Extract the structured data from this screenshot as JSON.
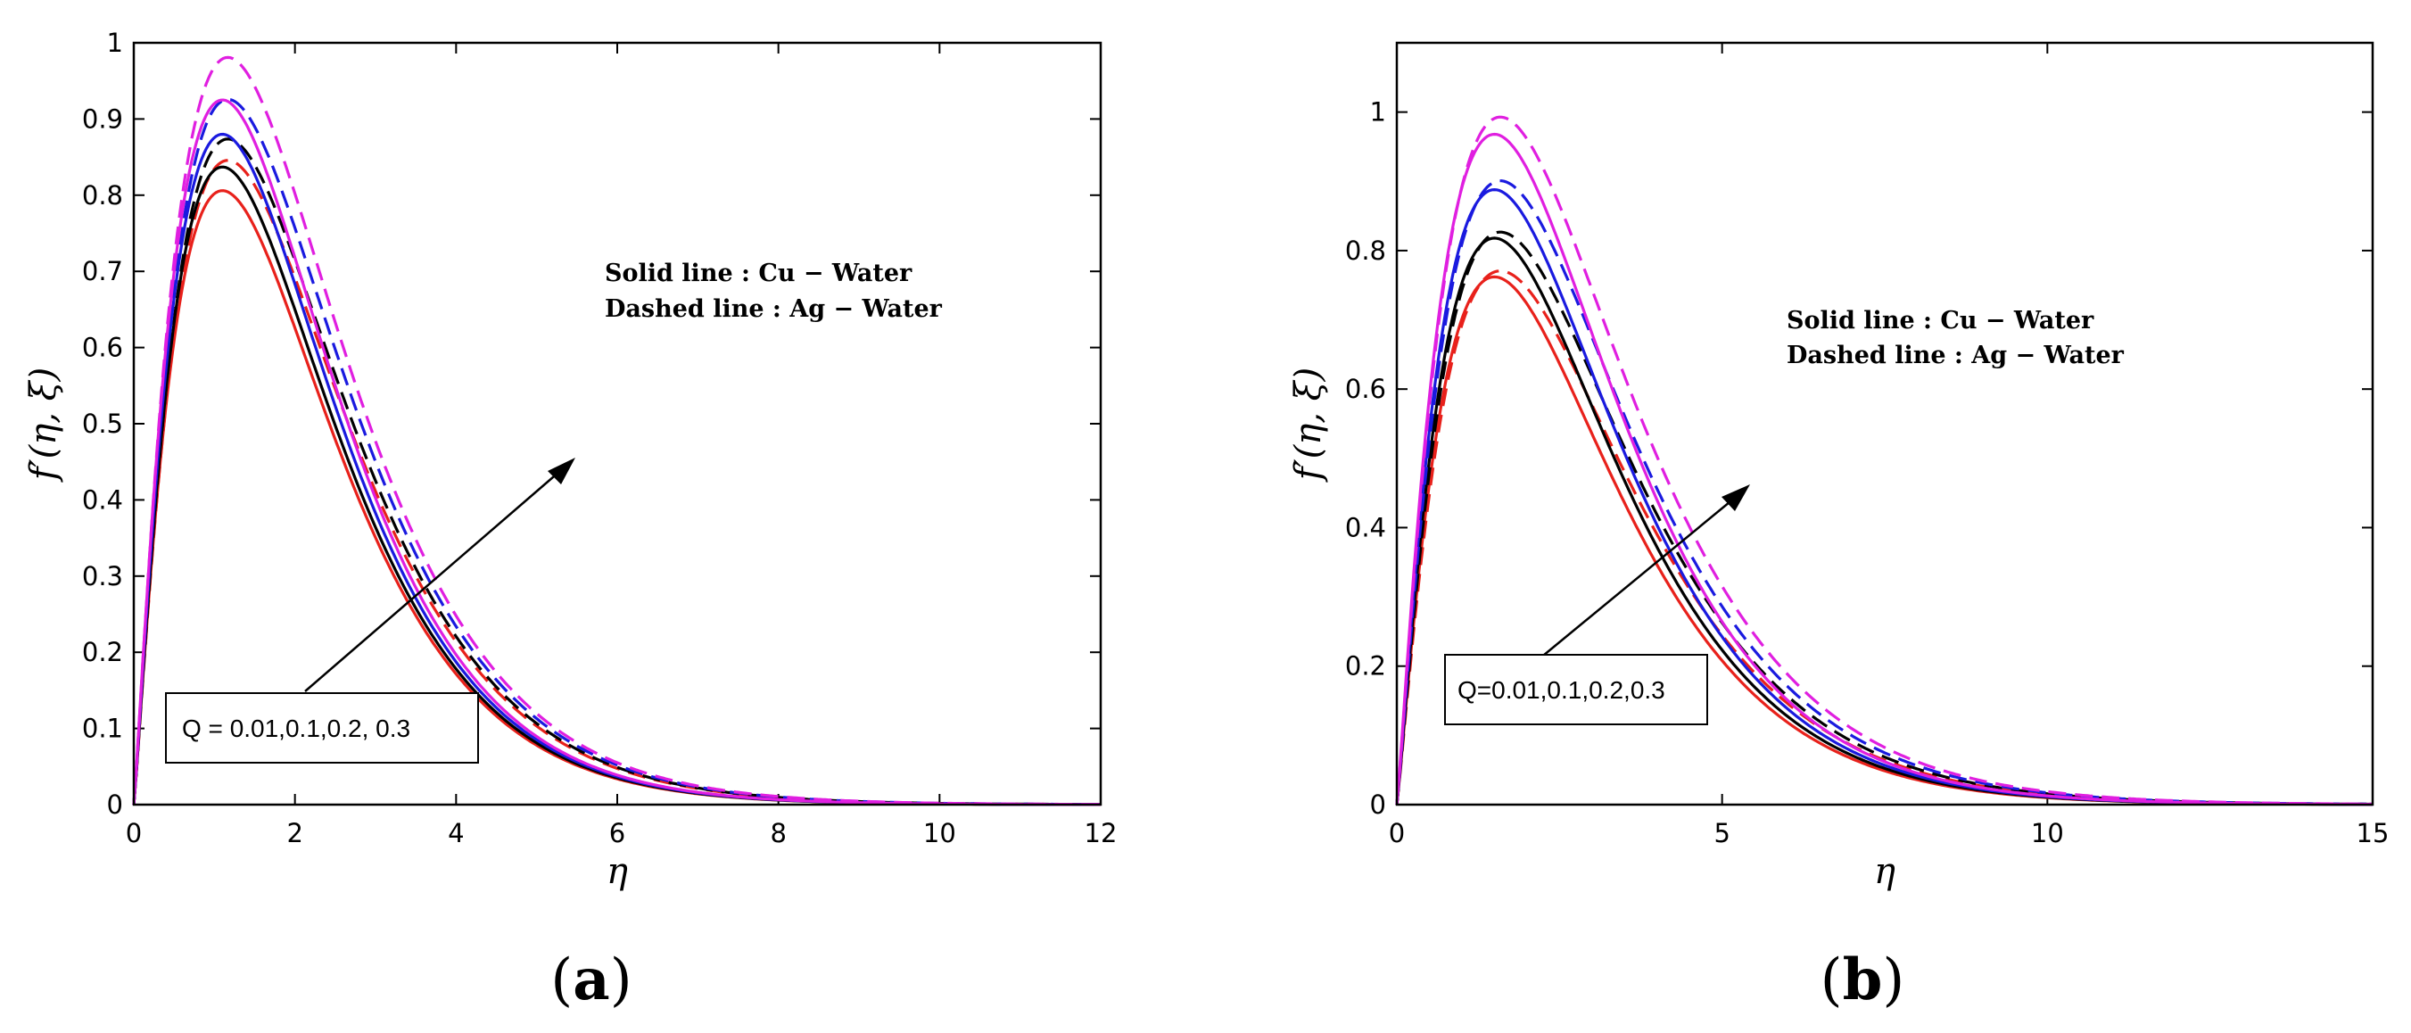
{
  "chart_data": [
    {
      "type": "line",
      "panel_label": "a",
      "xlabel": "η",
      "ylabel": "f′(η, ξ)",
      "xlim": [
        0,
        12
      ],
      "ylim": [
        0,
        1
      ],
      "xticks": [
        "0",
        "2",
        "4",
        "6",
        "8",
        "10",
        "12"
      ],
      "yticks": [
        "0",
        "0.1",
        "0.2",
        "0.3",
        "0.4",
        "0.5",
        "0.6",
        "0.7",
        "0.8",
        "0.9",
        "1"
      ],
      "legend_lines": [
        "Solid line : Cu − Water",
        "Dashed line : Ag − Water"
      ],
      "annotation": "Q = 0.01,0.1,0.2, 0.3",
      "peak_x": 1.1,
      "series": [
        {
          "name": "Q=0.01 Cu-Water",
          "color": "#e8211b",
          "style": "solid",
          "peak": 0.806
        },
        {
          "name": "Q=0.01 Ag-Water",
          "color": "#e8211b",
          "style": "dashed",
          "peak": 0.845
        },
        {
          "name": "Q=0.1 Cu-Water",
          "color": "#000000",
          "style": "solid",
          "peak": 0.837
        },
        {
          "name": "Q=0.1 Ag-Water",
          "color": "#000000",
          "style": "dashed",
          "peak": 0.873
        },
        {
          "name": "Q=0.2 Cu-Water",
          "color": "#1a1adf",
          "style": "solid",
          "peak": 0.88
        },
        {
          "name": "Q=0.2 Ag-Water",
          "color": "#1a1adf",
          "style": "dashed",
          "peak": 0.925
        },
        {
          "name": "Q=0.3 Cu-Water",
          "color": "#e01fe0",
          "style": "solid",
          "peak": 0.925
        },
        {
          "name": "Q=0.3 Ag-Water",
          "color": "#e01fe0",
          "style": "dashed",
          "peak": 0.98
        }
      ]
    },
    {
      "type": "line",
      "panel_label": "b",
      "xlabel": "η",
      "ylabel": "f′(η, ξ)",
      "xlim": [
        0,
        15
      ],
      "ylim": [
        0,
        1.1
      ],
      "xticks": [
        "0",
        "5",
        "10",
        "15"
      ],
      "yticks": [
        "0",
        "0.2",
        "0.4",
        "0.6",
        "0.8",
        "1"
      ],
      "legend_lines": [
        "Solid line : Cu − Water",
        "Dashed line : Ag − Water"
      ],
      "annotation": "Q=0.01,0.1,0.2,0.3",
      "peak_x": 1.5,
      "series": [
        {
          "name": "Q=0.01 Cu-Water",
          "color": "#e8211b",
          "style": "solid",
          "peak": 0.762
        },
        {
          "name": "Q=0.01 Ag-Water",
          "color": "#e8211b",
          "style": "dashed",
          "peak": 0.77
        },
        {
          "name": "Q=0.1 Cu-Water",
          "color": "#000000",
          "style": "solid",
          "peak": 0.818
        },
        {
          "name": "Q=0.1 Ag-Water",
          "color": "#000000",
          "style": "dashed",
          "peak": 0.826
        },
        {
          "name": "Q=0.2 Cu-Water",
          "color": "#1a1adf",
          "style": "solid",
          "peak": 0.888
        },
        {
          "name": "Q=0.2 Ag-Water",
          "color": "#1a1adf",
          "style": "dashed",
          "peak": 0.9
        },
        {
          "name": "Q=0.3 Cu-Water",
          "color": "#e01fe0",
          "style": "solid",
          "peak": 0.968
        },
        {
          "name": "Q=0.3 Ag-Water",
          "color": "#e01fe0",
          "style": "dashed",
          "peak": 0.992
        }
      ]
    }
  ]
}
